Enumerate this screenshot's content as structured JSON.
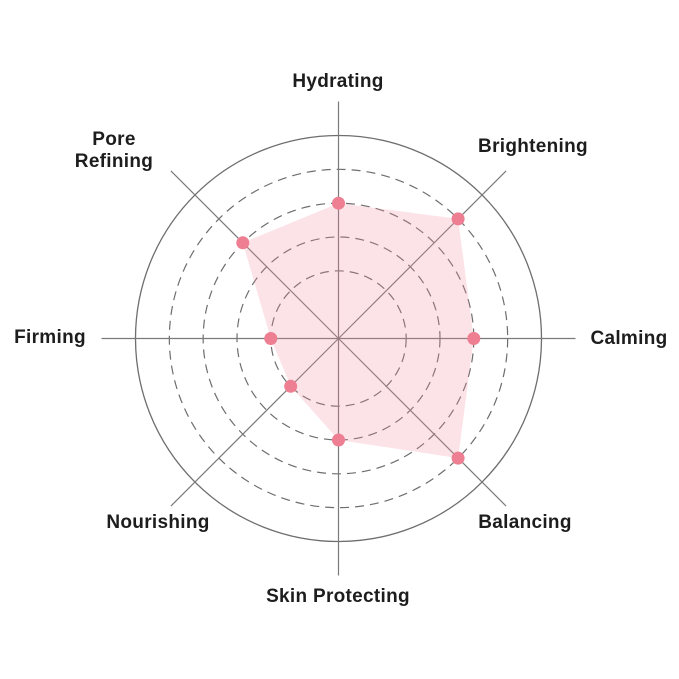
{
  "chart_data": {
    "type": "radar",
    "title": "",
    "categories": [
      "Hydrating",
      "Brightening",
      "Calming",
      "Balancing",
      "Skin Protecting",
      "Nourishing",
      "Firming",
      "Pore Refining"
    ],
    "values": [
      4,
      5,
      4,
      5,
      3,
      2,
      2,
      4
    ],
    "scale_max": 6,
    "ring_levels_dashed": [
      2,
      3,
      4,
      5
    ],
    "ring_level_solid": 6,
    "start_angle_deg": -90,
    "direction": "clockwise",
    "grid": true,
    "legend": "none",
    "colors": {
      "background": "#ffffff",
      "fill": "rgba(242,139,158,0.24)",
      "point": "#ee7e92",
      "ring_line": "#6e6e6e",
      "axis_line": "#7a7a7a",
      "label_text": "#1d1d1d"
    }
  }
}
